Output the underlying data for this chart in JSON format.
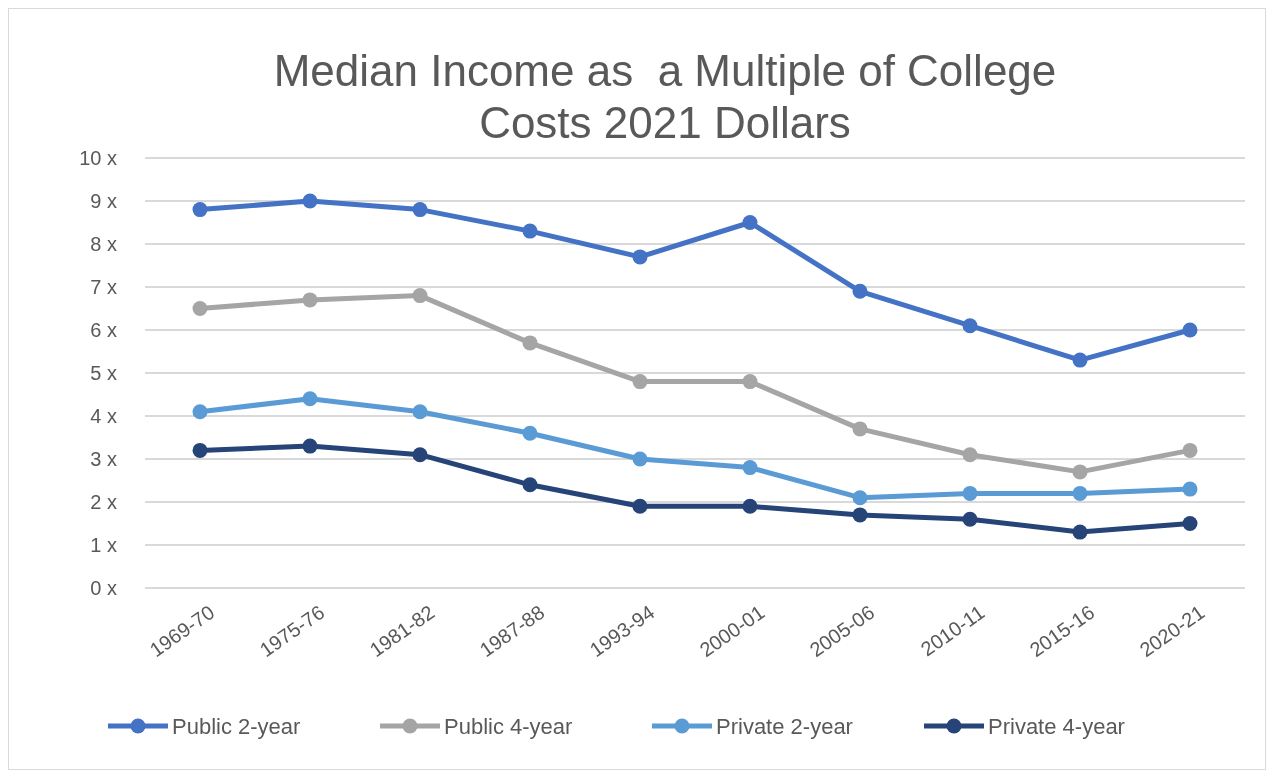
{
  "chart_data": {
    "type": "line",
    "title": "Median Income as  a Multiple of College Costs 2021 Dollars",
    "categories": [
      "1969-70",
      "1975-76",
      "1981-82",
      "1987-88",
      "1993-94",
      "2000-01",
      "2005-06",
      "2010-11",
      "2015-16",
      "2020-21"
    ],
    "series": [
      {
        "name": "Public 2-year",
        "color": "#4472c4",
        "values": [
          8.8,
          9.0,
          8.8,
          8.3,
          7.7,
          8.5,
          6.9,
          6.1,
          5.3,
          6.0
        ]
      },
      {
        "name": "Public 4-year",
        "color": "#a5a5a5",
        "values": [
          6.5,
          6.7,
          6.8,
          5.7,
          4.8,
          4.8,
          3.7,
          3.1,
          2.7,
          3.2
        ]
      },
      {
        "name": "Private 2-year",
        "color": "#5b9bd5",
        "values": [
          4.1,
          4.4,
          4.1,
          3.6,
          3.0,
          2.8,
          2.1,
          2.2,
          2.2,
          2.3
        ]
      },
      {
        "name": "Private 4-year",
        "color": "#264478",
        "values": [
          3.2,
          3.3,
          3.1,
          2.4,
          1.9,
          1.9,
          1.7,
          1.6,
          1.3,
          1.5
        ]
      }
    ],
    "ylim": [
      0,
      10
    ],
    "yticks": [
      {
        "value": 0,
        "label": "0 x"
      },
      {
        "value": 1,
        "label": "1 x"
      },
      {
        "value": 2,
        "label": "2 x"
      },
      {
        "value": 3,
        "label": "3 x"
      },
      {
        "value": 4,
        "label": "4 x"
      },
      {
        "value": 5,
        "label": "5 x"
      },
      {
        "value": 6,
        "label": "6 x"
      },
      {
        "value": 7,
        "label": "7 x"
      },
      {
        "value": 8,
        "label": "8 x"
      },
      {
        "value": 9,
        "label": "9 x"
      },
      {
        "value": 10,
        "label": "10 x"
      }
    ],
    "grid": "y",
    "legend": "bottom",
    "marker": "circle",
    "line_style": "solid"
  }
}
